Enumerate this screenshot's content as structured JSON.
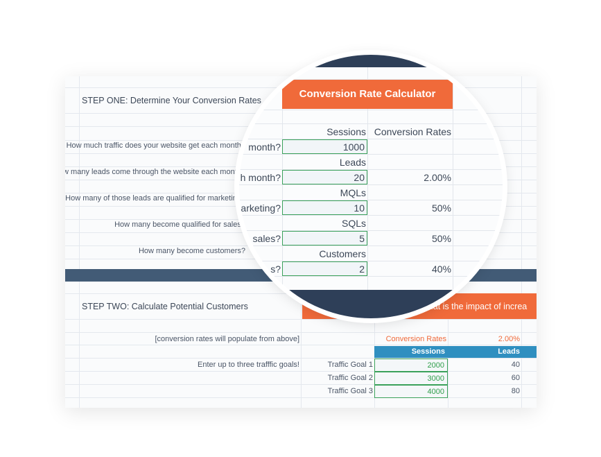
{
  "step_one": {
    "title": "STEP ONE: Determine Your Conversion Rates",
    "questions": [
      "How much traffic does your website get each month?",
      "How many leads come through the website each month?",
      "How many of those leads are qualified for marketing?",
      "How many become qualified for sales?",
      "How many become customers?"
    ]
  },
  "calculator": {
    "title": "Conversion Rate Calculator",
    "conversion_header": "Conversion Rates",
    "rows": [
      {
        "label": "Sessions",
        "question_tail": "month?",
        "value": "1000",
        "rate": ""
      },
      {
        "label": "Leads",
        "question_tail": "h month?",
        "value": "20",
        "rate": "2.00%"
      },
      {
        "label": "MQLs",
        "question_tail": "arketing?",
        "value": "10",
        "rate": "50%"
      },
      {
        "label": "SQLs",
        "question_tail": "sales?",
        "value": "5",
        "rate": "50%"
      },
      {
        "label": "Customers",
        "question_tail": "s?",
        "value": "2",
        "rate": "40%"
      }
    ]
  },
  "step_two": {
    "title": "STEP TWO: Calculate Potential Customers",
    "impact_banner": "What is the impact of increa",
    "note": "[conversion rates will populate from above]",
    "goals_prompt": "Enter up to three trafffic goals!",
    "conversion_rates_label": "Conversion Rates",
    "conversion_rate_value": "2.00%",
    "columns": [
      "Sessions",
      "Leads"
    ],
    "goals": [
      {
        "label": "Traffic Goal 1",
        "sessions": "2000",
        "leads": "40"
      },
      {
        "label": "Traffic Goal 2",
        "sessions": "3000",
        "leads": "60"
      },
      {
        "label": "Traffic Goal 3",
        "sessions": "4000",
        "leads": "80"
      }
    ]
  },
  "colors": {
    "accent_orange": "#f06a3a",
    "navy": "#425b76",
    "input_green": "#2e9e4a",
    "header_blue": "#2f8fc0"
  }
}
